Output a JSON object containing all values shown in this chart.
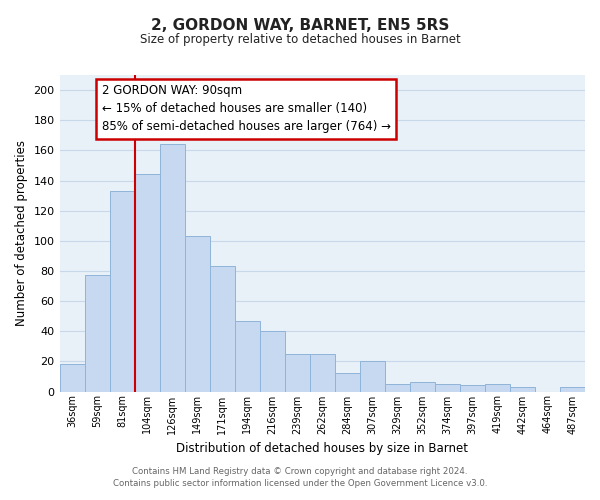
{
  "title": "2, GORDON WAY, BARNET, EN5 5RS",
  "subtitle": "Size of property relative to detached houses in Barnet",
  "xlabel": "Distribution of detached houses by size in Barnet",
  "ylabel": "Number of detached properties",
  "footer_line1": "Contains HM Land Registry data © Crown copyright and database right 2024.",
  "footer_line2": "Contains public sector information licensed under the Open Government Licence v3.0.",
  "bar_labels": [
    "36sqm",
    "59sqm",
    "81sqm",
    "104sqm",
    "126sqm",
    "149sqm",
    "171sqm",
    "194sqm",
    "216sqm",
    "239sqm",
    "262sqm",
    "284sqm",
    "307sqm",
    "329sqm",
    "352sqm",
    "374sqm",
    "397sqm",
    "419sqm",
    "442sqm",
    "464sqm",
    "487sqm"
  ],
  "bar_values": [
    18,
    77,
    133,
    144,
    164,
    103,
    83,
    47,
    40,
    25,
    25,
    12,
    20,
    5,
    6,
    5,
    4,
    5,
    3,
    0,
    3
  ],
  "bar_color": "#c6d9f1",
  "bar_edge_color": "#8fb4d9",
  "ylim": [
    0,
    210
  ],
  "yticks": [
    0,
    20,
    40,
    60,
    80,
    100,
    120,
    140,
    160,
    180,
    200
  ],
  "annotation_title": "2 GORDON WAY: 90sqm",
  "annotation_line1": "← 15% of detached houses are smaller (140)",
  "annotation_line2": "85% of semi-detached houses are larger (764) →",
  "annotation_box_color": "#ffffff",
  "annotation_box_edge": "#cc0000",
  "red_line_color": "#cc0000",
  "grid_color": "#c8d8e8",
  "background_color": "#e8f0f8"
}
